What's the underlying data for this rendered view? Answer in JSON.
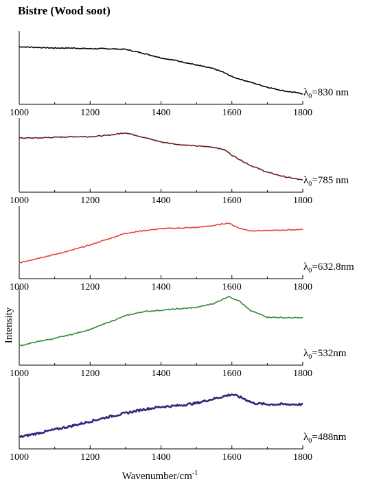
{
  "title": "Bistre (Wood soot)",
  "ylabel": "Intensity",
  "xlabel": "Wavenumber/cm",
  "xlabel_sup": "-1",
  "chart_data": [
    {
      "type": "line",
      "xlim": [
        1000,
        1800
      ],
      "xticks": [
        1000,
        1200,
        1400,
        1600,
        1800
      ],
      "ylim": [
        0,
        1
      ],
      "series": [
        {
          "name": "λ0=830 nm",
          "color": "#000000",
          "x": [
            1000,
            1050,
            1100,
            1150,
            1200,
            1250,
            1300,
            1350,
            1400,
            1450,
            1500,
            1550,
            1580,
            1600,
            1650,
            1700,
            1750,
            1800
          ],
          "y": [
            0.82,
            0.81,
            0.8,
            0.8,
            0.79,
            0.79,
            0.78,
            0.72,
            0.65,
            0.6,
            0.54,
            0.48,
            0.42,
            0.36,
            0.28,
            0.2,
            0.14,
            0.1
          ]
        }
      ],
      "label_prefix": "λ",
      "label_sub": "0",
      "label_suffix": "=830 nm"
    },
    {
      "type": "line",
      "xlim": [
        1000,
        1800
      ],
      "xticks": [
        1000,
        1200,
        1400,
        1600,
        1800
      ],
      "ylim": [
        0,
        1
      ],
      "series": [
        {
          "name": "λ0=785 nm",
          "color": "#6b1a1a",
          "x": [
            1000,
            1050,
            1100,
            1150,
            1200,
            1250,
            1300,
            1330,
            1400,
            1450,
            1500,
            1550,
            1580,
            1600,
            1650,
            1700,
            1750,
            1800
          ],
          "y": [
            0.76,
            0.76,
            0.77,
            0.78,
            0.78,
            0.8,
            0.84,
            0.8,
            0.7,
            0.66,
            0.64,
            0.62,
            0.58,
            0.5,
            0.35,
            0.24,
            0.17,
            0.12
          ]
        }
      ],
      "label_prefix": "λ",
      "label_sub": "0",
      "label_suffix": "=785 nm"
    },
    {
      "type": "line",
      "xlim": [
        1000,
        1800
      ],
      "xticks": [
        1000,
        1200,
        1400,
        1600,
        1800
      ],
      "ylim": [
        0,
        1
      ],
      "series": [
        {
          "name": "λ0=632.8nm",
          "color": "#e8413a",
          "x": [
            1000,
            1050,
            1100,
            1150,
            1200,
            1250,
            1300,
            1350,
            1400,
            1450,
            1500,
            1550,
            1590,
            1620,
            1650,
            1700,
            1750,
            1800
          ],
          "y": [
            0.18,
            0.25,
            0.31,
            0.38,
            0.46,
            0.55,
            0.64,
            0.68,
            0.71,
            0.72,
            0.73,
            0.76,
            0.8,
            0.72,
            0.68,
            0.68,
            0.69,
            0.7
          ]
        }
      ],
      "label_prefix": "λ",
      "label_sub": "0",
      "label_suffix": "=632.8nm"
    },
    {
      "type": "line",
      "xlim": [
        1000,
        1800
      ],
      "xticks": [
        1000,
        1200,
        1400,
        1600,
        1800
      ],
      "ylim": [
        0,
        1
      ],
      "series": [
        {
          "name": "λ0=532nm",
          "color": "#2e8b3a",
          "x": [
            1000,
            1050,
            1100,
            1150,
            1200,
            1250,
            1300,
            1350,
            1400,
            1450,
            1500,
            1550,
            1590,
            1620,
            1650,
            1700,
            1750,
            1800
          ],
          "y": [
            0.22,
            0.28,
            0.33,
            0.39,
            0.46,
            0.56,
            0.66,
            0.72,
            0.74,
            0.76,
            0.78,
            0.84,
            0.94,
            0.88,
            0.74,
            0.64,
            0.63,
            0.63
          ]
        }
      ],
      "label_prefix": "λ",
      "label_sub": "0",
      "label_suffix": "=532nm"
    },
    {
      "type": "line",
      "xlim": [
        1000,
        1800
      ],
      "xticks": [
        1000,
        1200,
        1400,
        1600,
        1800
      ],
      "ylim": [
        0,
        1
      ],
      "series": [
        {
          "name": "λ0=488nm",
          "color": "#2d2a7a",
          "x": [
            1000,
            1050,
            1100,
            1150,
            1200,
            1250,
            1300,
            1350,
            1400,
            1450,
            1500,
            1550,
            1600,
            1630,
            1660,
            1700,
            1750,
            1800
          ],
          "y": [
            0.12,
            0.18,
            0.24,
            0.3,
            0.37,
            0.44,
            0.5,
            0.56,
            0.6,
            0.62,
            0.66,
            0.73,
            0.8,
            0.74,
            0.66,
            0.64,
            0.64,
            0.64
          ]
        }
      ],
      "label_prefix": "λ",
      "label_sub": "0",
      "label_suffix": "=488nm"
    }
  ]
}
